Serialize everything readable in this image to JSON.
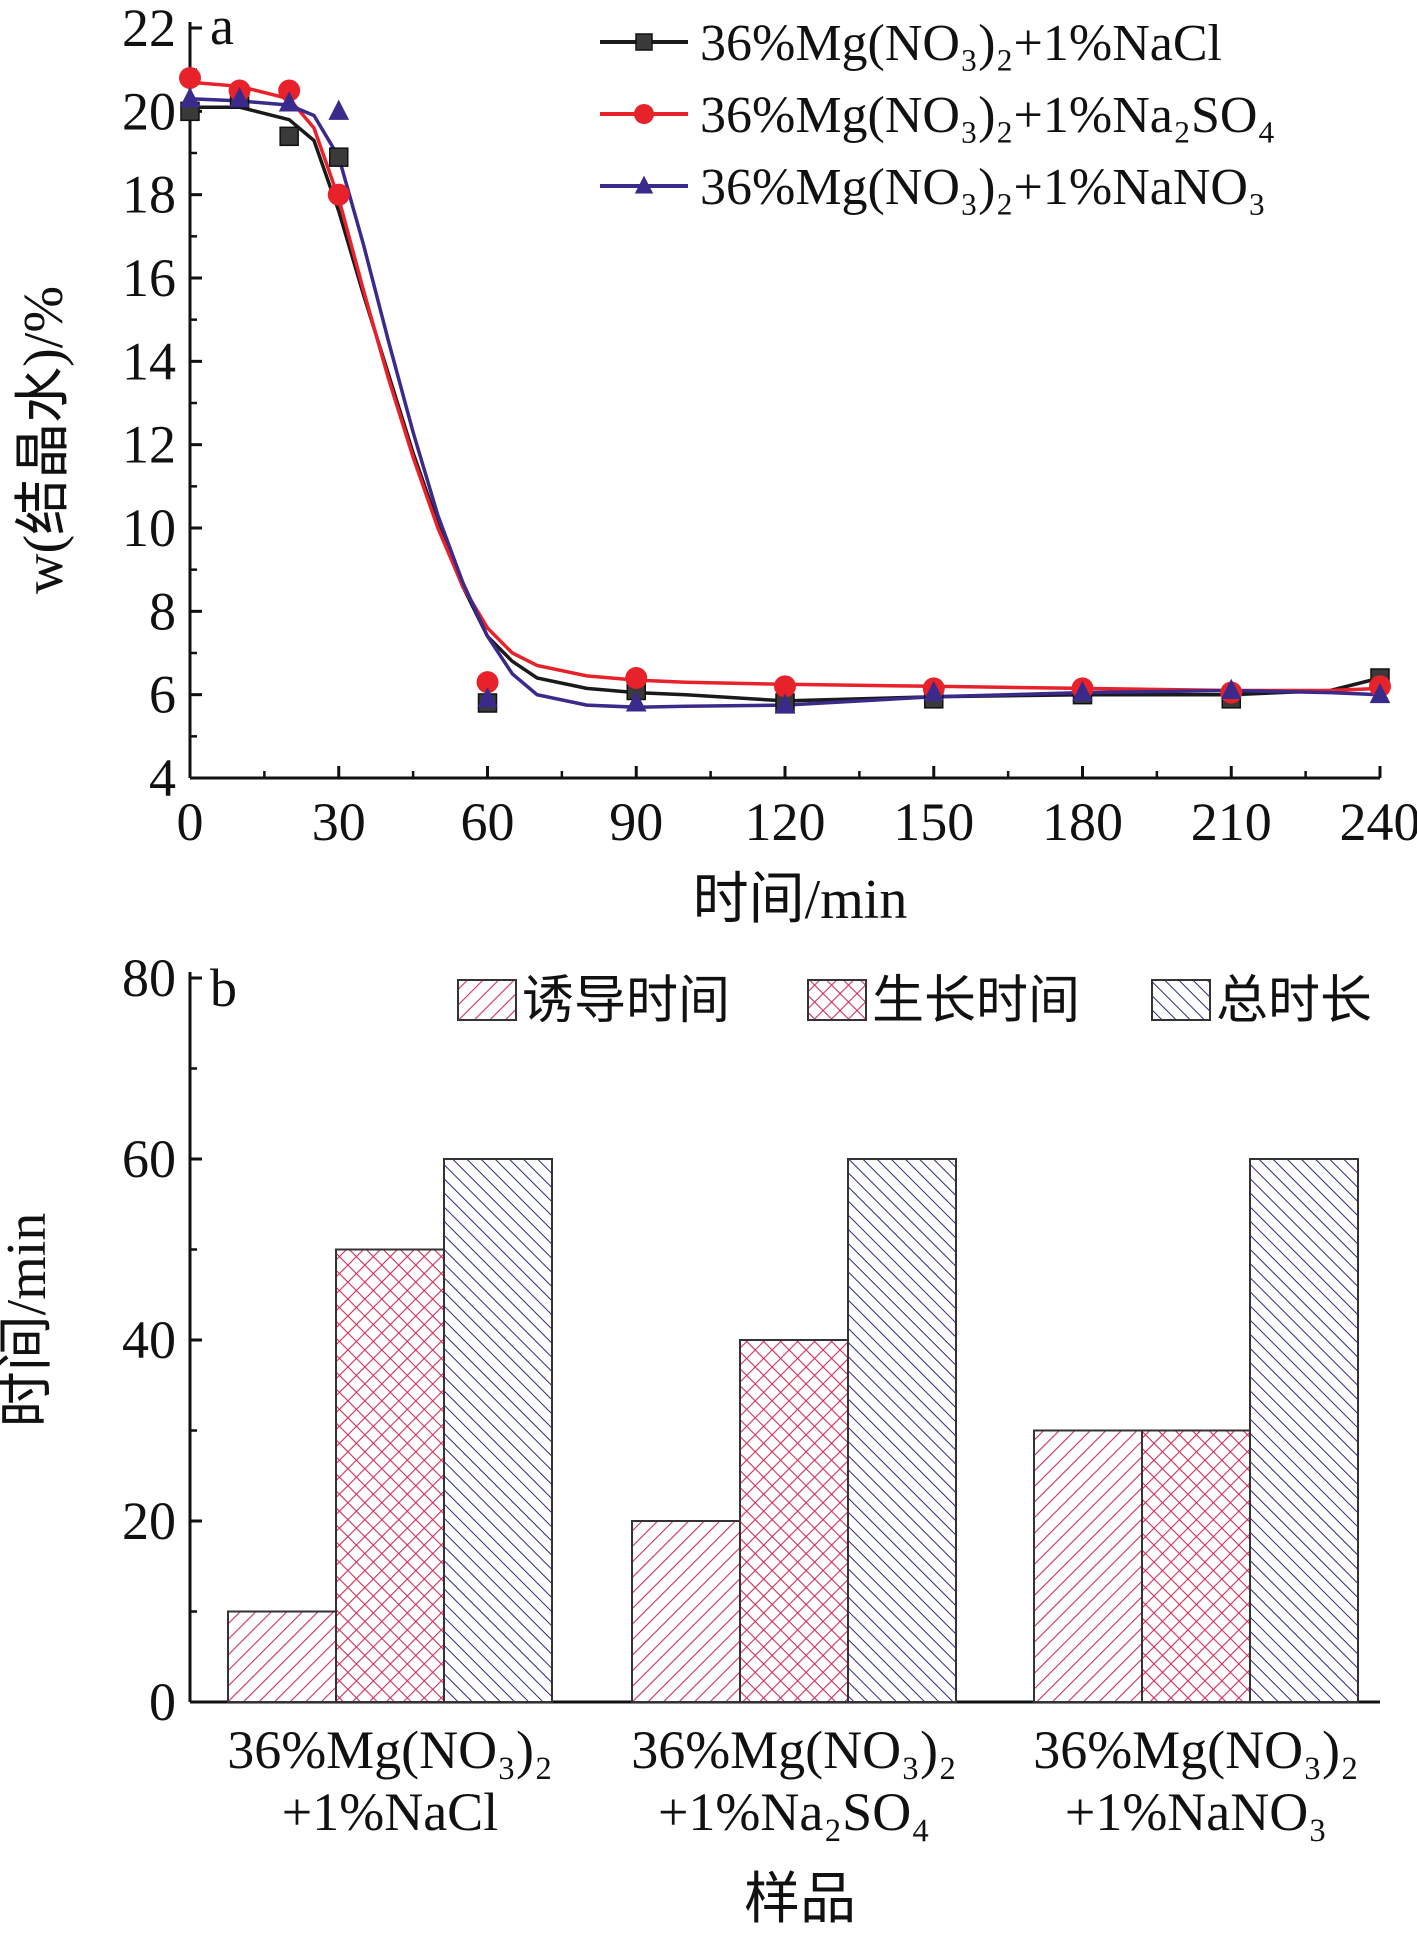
{
  "chart_data": [
    {
      "panel": "a",
      "type": "line",
      "xlabel": "时间/min",
      "ylabel": "w(结晶水)/%",
      "xlim": [
        0,
        240
      ],
      "ylim": [
        4,
        22
      ],
      "xticks": [
        0,
        30,
        60,
        90,
        120,
        150,
        180,
        210,
        240
      ],
      "yticks": [
        4,
        6,
        8,
        10,
        12,
        14,
        16,
        18,
        20,
        22
      ],
      "grid": false,
      "legend_position": "top-right",
      "series": [
        {
          "name": "36%Mg(NO₃)₂+1%NaCl",
          "color": "#1a1a1a",
          "marker": "square",
          "x": [
            0,
            10,
            20,
            30,
            60,
            90,
            120,
            150,
            180,
            210,
            240
          ],
          "y": [
            20.0,
            20.3,
            19.4,
            18.9,
            5.8,
            6.1,
            5.8,
            5.9,
            6.0,
            5.9,
            6.4
          ],
          "curve": [
            [
              0,
              20.1
            ],
            [
              10,
              20.1
            ],
            [
              20,
              19.8
            ],
            [
              25,
              19.3
            ],
            [
              30,
              17.6
            ],
            [
              35,
              15.6
            ],
            [
              40,
              13.7
            ],
            [
              45,
              11.8
            ],
            [
              50,
              10.1
            ],
            [
              55,
              8.6
            ],
            [
              60,
              7.4
            ],
            [
              65,
              6.8
            ],
            [
              70,
              6.4
            ],
            [
              80,
              6.15
            ],
            [
              90,
              6.05
            ],
            [
              100,
              6.0
            ],
            [
              120,
              5.85
            ],
            [
              150,
              5.95
            ],
            [
              180,
              6.0
            ],
            [
              210,
              6.0
            ],
            [
              230,
              6.1
            ],
            [
              240,
              6.4
            ]
          ]
        },
        {
          "name": "36%Mg(NO₃)₂+1%Na₂SO₄",
          "color": "#e8222a",
          "marker": "circle",
          "x": [
            0,
            10,
            20,
            30,
            60,
            90,
            120,
            150,
            180,
            210,
            240
          ],
          "y": [
            20.8,
            20.5,
            20.5,
            18.0,
            6.3,
            6.4,
            6.2,
            6.15,
            6.15,
            6.05,
            6.2
          ],
          "curve": [
            [
              0,
              20.7
            ],
            [
              10,
              20.6
            ],
            [
              20,
              20.3
            ],
            [
              25,
              19.6
            ],
            [
              30,
              17.9
            ],
            [
              35,
              15.7
            ],
            [
              40,
              13.6
            ],
            [
              45,
              11.7
            ],
            [
              50,
              10.0
            ],
            [
              55,
              8.6
            ],
            [
              60,
              7.6
            ],
            [
              65,
              7.0
            ],
            [
              70,
              6.7
            ],
            [
              80,
              6.45
            ],
            [
              90,
              6.35
            ],
            [
              100,
              6.3
            ],
            [
              120,
              6.25
            ],
            [
              150,
              6.2
            ],
            [
              180,
              6.15
            ],
            [
              210,
              6.1
            ],
            [
              230,
              6.1
            ],
            [
              240,
              6.15
            ]
          ]
        },
        {
          "name": "36%Mg(NO₃)₂+1%NaNO₃",
          "color": "#3a2a8c",
          "marker": "triangle",
          "x": [
            0,
            10,
            20,
            30,
            60,
            90,
            120,
            150,
            180,
            210,
            240
          ],
          "y": [
            20.3,
            20.3,
            20.2,
            20.0,
            5.9,
            5.8,
            5.75,
            6.05,
            6.05,
            6.1,
            6.0
          ],
          "curve": [
            [
              0,
              20.3
            ],
            [
              10,
              20.25
            ],
            [
              20,
              20.15
            ],
            [
              25,
              19.9
            ],
            [
              30,
              18.9
            ],
            [
              35,
              16.8
            ],
            [
              40,
              14.5
            ],
            [
              45,
              12.3
            ],
            [
              50,
              10.3
            ],
            [
              55,
              8.7
            ],
            [
              60,
              7.4
            ],
            [
              65,
              6.5
            ],
            [
              70,
              6.0
            ],
            [
              80,
              5.75
            ],
            [
              90,
              5.7
            ],
            [
              100,
              5.72
            ],
            [
              120,
              5.75
            ],
            [
              150,
              5.95
            ],
            [
              180,
              6.05
            ],
            [
              210,
              6.1
            ],
            [
              230,
              6.05
            ],
            [
              240,
              6.0
            ]
          ]
        }
      ]
    },
    {
      "panel": "b",
      "type": "bar",
      "xlabel": "样品",
      "ylabel": "时间/min",
      "ylim": [
        0,
        80
      ],
      "yticks": [
        0,
        20,
        40,
        60,
        80
      ],
      "grid": false,
      "legend_position": "top-right",
      "categories": [
        [
          "36%Mg(NO₃)₂",
          "+1%NaCl"
        ],
        [
          "36%Mg(NO₃)₂",
          "+1%Na₂SO₄"
        ],
        [
          "36%Mg(NO₃)₂",
          "+1%NaNO₃"
        ]
      ],
      "series": [
        {
          "name": "诱导时间",
          "pattern": "diag",
          "color": "#d0305a",
          "values": [
            10,
            20,
            30
          ]
        },
        {
          "name": "生长时间",
          "pattern": "cross",
          "color": "#d0305a",
          "values": [
            50,
            40,
            30
          ]
        },
        {
          "name": "总时长",
          "pattern": "antidiag",
          "color": "#2a2a8a",
          "values": [
            60,
            60,
            60
          ]
        }
      ]
    }
  ]
}
